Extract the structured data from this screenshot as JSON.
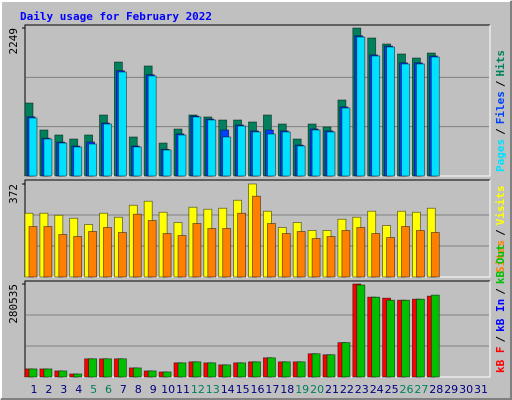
{
  "chart_data": [
    {
      "type": "bar",
      "title": "Daily usage for February 2022",
      "ylim": [
        0,
        2249
      ],
      "yticks": [
        2249
      ],
      "draw_order": "reverse",
      "legend_separator": "/",
      "series": [
        {
          "name": "Pages",
          "color": "#00e0ff",
          "values": [
            881,
            562,
            501,
            441,
            486,
            790,
            1580,
            441,
            1520,
            395,
            623,
            897,
            851,
            593,
            760,
            669,
            638,
            669,
            456,
            699,
            669,
            1033,
            2112,
            1824,
            1960,
            1702,
            1702,
            1808,
            null,
            null,
            null
          ]
        },
        {
          "name": "Files",
          "color": "#0040ff",
          "values": [
            900,
            575,
            515,
            455,
            517,
            805,
            1600,
            455,
            1540,
            405,
            640,
            910,
            865,
            699,
            775,
            685,
            699,
            685,
            470,
            715,
            685,
            1050,
            2130,
            1840,
            1975,
            1720,
            1720,
            1825,
            null,
            null,
            null
          ]
        },
        {
          "name": "Hits",
          "color": "#00805c",
          "values": [
            1109,
            699,
            623,
            562,
            623,
            927,
            1732,
            593,
            1672,
            501,
            714,
            927,
            897,
            851,
            851,
            821,
            927,
            790,
            562,
            790,
            745,
            1155,
            2249,
            2097,
            2006,
            1854,
            1793,
            1869,
            null,
            null,
            null
          ]
        }
      ]
    },
    {
      "type": "bar",
      "ylim": [
        0,
        372
      ],
      "yticks": [
        372
      ],
      "draw_order": "reverse",
      "series": [
        {
          "name": "Sites",
          "color": "#ff8000",
          "values": [
            202,
            202,
            170,
            162,
            182,
            198,
            178,
            251,
            226,
            174,
            166,
            214,
            194,
            194,
            255,
            323,
            214,
            174,
            182,
            154,
            162,
            186,
            198,
            174,
            158,
            202,
            186,
            178,
            null,
            null,
            null
          ]
        },
        {
          "name": "Visits",
          "color": "#ffff00",
          "values": [
            255,
            255,
            247,
            235,
            210,
            255,
            239,
            287,
            303,
            259,
            218,
            279,
            271,
            275,
            307,
            372,
            263,
            198,
            218,
            186,
            186,
            231,
            239,
            263,
            206,
            263,
            259,
            275,
            null,
            null,
            null
          ]
        }
      ]
    },
    {
      "type": "bar",
      "ylim": [
        0,
        280535
      ],
      "yticks": [
        280535
      ],
      "draw_order": "forward",
      "categories": [
        "1",
        "2",
        "3",
        "4",
        "5",
        "6",
        "7",
        "8",
        "9",
        "10",
        "11",
        "12",
        "13",
        "14",
        "15",
        "16",
        "17",
        "18",
        "19",
        "20",
        "21",
        "22",
        "23",
        "24",
        "25",
        "26",
        "27",
        "28",
        "29",
        "30",
        "31"
      ],
      "category_colors": [
        "#000080",
        "#000080",
        "#000080",
        "#000080",
        "#00805c",
        "#00805c",
        "#000080",
        "#000080",
        "#000080",
        "#000080",
        "#000080",
        "#00805c",
        "#00805c",
        "#000080",
        "#000080",
        "#000080",
        "#000080",
        "#000080",
        "#00805c",
        "#00805c",
        "#000080",
        "#000080",
        "#000080",
        "#000080",
        "#000080",
        "#00805c",
        "#00805c",
        "#000080",
        "#000080",
        "#000080",
        "#000080"
      ],
      "series": [
        {
          "name": "kB F",
          "color": "#ff0000",
          "values": [
            24394,
            24394,
            18296,
            9148,
            54888,
            54888,
            54888,
            27444,
            18296,
            15247,
            42691,
            45739,
            42691,
            36592,
            42691,
            45739,
            57937,
            45739,
            45739,
            70134,
            67085,
            103680,
            280535,
            240897,
            237848,
            231749,
            234798,
            243946,
            null,
            null,
            null
          ]
        },
        {
          "name": "kB In",
          "color": "#0000ff",
          "values": [
            0,
            0,
            0,
            0,
            0,
            0,
            0,
            0,
            0,
            0,
            0,
            0,
            0,
            0,
            0,
            0,
            0,
            0,
            0,
            0,
            0,
            0,
            0,
            0,
            0,
            0,
            0,
            0,
            null,
            null,
            null
          ]
        },
        {
          "name": "kB Out",
          "color": "#00c000",
          "values": [
            24394,
            24394,
            18296,
            9148,
            54888,
            54888,
            54888,
            27444,
            18296,
            15247,
            42691,
            45739,
            42691,
            36592,
            42691,
            45739,
            57937,
            45739,
            45739,
            70134,
            67085,
            103680,
            277486,
            240897,
            231749,
            231749,
            234798,
            246996,
            null,
            null,
            null
          ]
        }
      ]
    }
  ]
}
